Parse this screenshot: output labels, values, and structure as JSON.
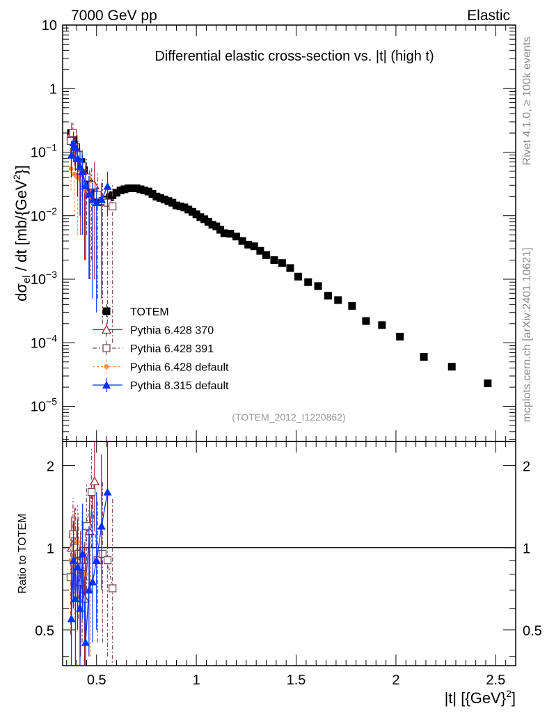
{
  "header": {
    "left": "7000 GeV pp",
    "right": "Elastic"
  },
  "side_labels": {
    "rivet": "Rivet 4.1.0, ≥ 100k events",
    "mcplots": "mcplots.cern.ch [arXiv:2401.10621]"
  },
  "colors": {
    "totem": "#000000",
    "py6_370": "#a02030",
    "py6_391": "#7a4a5a",
    "py6_default": "#ff8c40",
    "py8_default": "#0030ff",
    "ref_line": "#000000",
    "side_text": "#888888"
  },
  "chart_data": [
    {
      "id": "main",
      "type": "scatter",
      "title": "Differential elastic cross-section vs. |t| (high t)",
      "ylabel_main": "dσ",
      "ylabel_sub": "el",
      "ylabel_rest": " / dt [mb/{GeV",
      "ylabel_sup": "2",
      "ylabel_end": "}]",
      "yscale": "log",
      "xlim": [
        0.33,
        2.6
      ],
      "ylim": [
        2.8e-06,
        10
      ],
      "y_ticks": [
        {
          "value": 10,
          "base": "10",
          "sup": ""
        },
        {
          "value": 1,
          "base": "1",
          "sup": ""
        },
        {
          "value": 0.1,
          "base": "10",
          "sup": "−1"
        },
        {
          "value": 0.01,
          "base": "10",
          "sup": "−2"
        },
        {
          "value": 0.001,
          "base": "10",
          "sup": "−3"
        },
        {
          "value": 0.0001,
          "base": "10",
          "sup": "−4"
        },
        {
          "value": 1e-05,
          "base": "10",
          "sup": "−5"
        }
      ],
      "watermark": "(TOTEM_2012_I1220862)",
      "legend": [
        {
          "key": "totem",
          "label": "TOTEM"
        },
        {
          "key": "py6_370",
          "label": "Pythia 6.428 370"
        },
        {
          "key": "py6_391",
          "label": "Pythia 6.428 391"
        },
        {
          "key": "py6_default",
          "label": "Pythia 6.428 default"
        },
        {
          "key": "py8_default",
          "label": "Pythia 8.315 default"
        }
      ],
      "series": [
        {
          "key": "totem",
          "name": "TOTEM",
          "marker": "square",
          "x": [
            0.372,
            0.385,
            0.398,
            0.411,
            0.424,
            0.437,
            0.45,
            0.463,
            0.476,
            0.489,
            0.502,
            0.515,
            0.528,
            0.541,
            0.554,
            0.567,
            0.58,
            0.6,
            0.62,
            0.64,
            0.66,
            0.68,
            0.7,
            0.72,
            0.74,
            0.76,
            0.78,
            0.8,
            0.82,
            0.84,
            0.86,
            0.88,
            0.9,
            0.92,
            0.94,
            0.96,
            0.98,
            1.0,
            1.02,
            1.04,
            1.06,
            1.08,
            1.1,
            1.12,
            1.14,
            1.17,
            1.2,
            1.23,
            1.26,
            1.29,
            1.32,
            1.35,
            1.39,
            1.43,
            1.47,
            1.51,
            1.56,
            1.61,
            1.66,
            1.71,
            1.78,
            1.85,
            1.93,
            2.02,
            2.14,
            2.28,
            2.46
          ],
          "y": [
            0.2,
            0.16,
            0.12,
            0.09,
            0.07,
            0.052,
            0.04,
            0.032,
            0.026,
            0.021,
            0.0185,
            0.017,
            0.0165,
            0.017,
            0.018,
            0.0195,
            0.021,
            0.023,
            0.025,
            0.026,
            0.027,
            0.027,
            0.027,
            0.026,
            0.025,
            0.024,
            0.022,
            0.02,
            0.019,
            0.018,
            0.017,
            0.016,
            0.0145,
            0.014,
            0.0135,
            0.0125,
            0.0115,
            0.0105,
            0.0095,
            0.0088,
            0.008,
            0.0072,
            0.0068,
            0.006,
            0.0053,
            0.0052,
            0.0047,
            0.004,
            0.0035,
            0.0033,
            0.0028,
            0.0024,
            0.002,
            0.0018,
            0.0015,
            0.0011,
            0.0009,
            0.00078,
            0.00055,
            0.00047,
            0.00038,
            0.00022,
            0.00019,
            0.000125,
            6e-05,
            4.2e-05,
            2.3e-05
          ]
        },
        {
          "key": "py6_370",
          "name": "Pythia 6.428 370",
          "marker": "triangle-open",
          "x": [
            0.375,
            0.39,
            0.405,
            0.42,
            0.44,
            0.465,
            0.49
          ],
          "y": [
            0.2,
            0.12,
            0.08,
            0.05,
            0.03,
            0.022,
            0.03
          ],
          "err_lo": [
            0.05,
            0.06,
            0.06,
            0.045,
            0.028,
            0.021,
            0.029
          ],
          "err_hi": [
            0.09,
            0.08,
            0.07,
            0.05,
            0.04,
            0.03,
            0.04
          ]
        },
        {
          "key": "py6_391",
          "name": "Pythia 6.428 391",
          "marker": "square-open",
          "x": [
            0.37,
            0.382,
            0.395,
            0.41,
            0.428,
            0.45,
            0.475,
            0.505,
            0.53,
            0.555,
            0.58
          ],
          "y": [
            0.15,
            0.2,
            0.12,
            0.09,
            0.06,
            0.04,
            0.03,
            0.021,
            0.017,
            0.016,
            0.014
          ],
          "err_lo": [
            0.05,
            0.07,
            0.06,
            0.05,
            0.04,
            0.035,
            0.028,
            0.0205,
            0.0168,
            0.0158,
            0.0139
          ],
          "err_hi": [
            0.08,
            0.09,
            0.07,
            0.06,
            0.05,
            0.04,
            0.03,
            0.025,
            0.02,
            0.018,
            0.016
          ]
        },
        {
          "key": "py6_default",
          "name": "Pythia 6.428 default",
          "marker": "circle",
          "x": [
            0.372,
            0.388,
            0.405,
            0.423,
            0.445,
            0.47
          ],
          "y": [
            0.055,
            0.045,
            0.04,
            0.035,
            0.025,
            0.02
          ],
          "err_lo": [
            0.03,
            0.035,
            0.035,
            0.03,
            0.023,
            0.019
          ],
          "err_hi": [
            0.04,
            0.04,
            0.04,
            0.035,
            0.03,
            0.025
          ]
        },
        {
          "key": "py8_default",
          "name": "Pythia 8.315 default",
          "marker": "triangle",
          "x": [
            0.374,
            0.384,
            0.394,
            0.405,
            0.417,
            0.43,
            0.445,
            0.462,
            0.48,
            0.5,
            0.525,
            0.555
          ],
          "y": [
            0.09,
            0.14,
            0.12,
            0.08,
            0.06,
            0.05,
            0.03,
            0.022,
            0.018,
            0.016,
            0.018,
            0.029
          ],
          "err_lo": [
            0.05,
            0.07,
            0.07,
            0.06,
            0.05,
            0.045,
            0.028,
            0.021,
            0.0175,
            0.0157,
            0.0175,
            0.019
          ],
          "err_hi": [
            0.06,
            0.07,
            0.06,
            0.06,
            0.05,
            0.04,
            0.03,
            0.02,
            0.015,
            0.012,
            0.015,
            0.02
          ]
        }
      ]
    },
    {
      "id": "ratio",
      "type": "scatter",
      "ylabel": "Ratio to TOTEM",
      "xlabel": "|t| [{GeV}",
      "xlabel_sup": "2",
      "xlabel_end": "]",
      "yscale": "log",
      "xlim": [
        0.33,
        2.6
      ],
      "ylim": [
        0.37,
        2.45
      ],
      "reference": 1.0,
      "x_ticks": [
        {
          "value": 0.5,
          "label": "0.5"
        },
        {
          "value": 1.0,
          "label": "1"
        },
        {
          "value": 1.5,
          "label": "1.5"
        },
        {
          "value": 2.0,
          "label": "2"
        },
        {
          "value": 2.5,
          "label": "2.5"
        }
      ],
      "y_ticks": [
        {
          "value": 0.5,
          "label": "0.5"
        },
        {
          "value": 1.0,
          "label": "1"
        },
        {
          "value": 2.0,
          "label": "2"
        }
      ],
      "series": [
        {
          "key": "py6_370",
          "x": [
            0.375,
            0.39,
            0.405,
            0.42,
            0.44,
            0.465,
            0.49
          ],
          "y": [
            1.0,
            1.05,
            0.9,
            0.75,
            0.65,
            1.15,
            1.75
          ],
          "err_lo": [
            0.3,
            0.35,
            0.4,
            0.35,
            0.3,
            0.45,
            0.6
          ],
          "err_hi": [
            0.3,
            0.35,
            0.4,
            0.4,
            0.4,
            0.5,
            0.7
          ]
        },
        {
          "key": "py6_391",
          "x": [
            0.37,
            0.382,
            0.395,
            0.41,
            0.428,
            0.45,
            0.475,
            0.505,
            0.53,
            0.555,
            0.58
          ],
          "y": [
            0.78,
            1.12,
            1.0,
            0.95,
            0.85,
            1.2,
            1.6,
            0.9,
            0.95,
            0.9,
            0.71
          ],
          "err_lo": [
            0.3,
            0.4,
            0.4,
            0.4,
            0.4,
            0.5,
            0.6,
            0.45,
            0.5,
            0.5,
            0.35
          ],
          "err_hi": [
            0.35,
            0.4,
            0.4,
            0.4,
            0.4,
            0.5,
            0.7,
            0.6,
            0.8,
            0.8,
            0.8
          ]
        },
        {
          "key": "py6_default",
          "x": [
            0.372,
            0.388,
            0.405,
            0.423,
            0.445,
            0.47
          ],
          "y": [
            0.9,
            0.85,
            1.05,
            0.95,
            0.8,
            0.7
          ],
          "err_lo": [
            0.35,
            0.3,
            0.4,
            0.4,
            0.3,
            0.3
          ],
          "err_hi": [
            0.35,
            0.35,
            0.4,
            0.4,
            0.4,
            0.4
          ]
        },
        {
          "key": "py8_default",
          "x": [
            0.374,
            0.384,
            0.394,
            0.405,
            0.417,
            0.43,
            0.445,
            0.462,
            0.48,
            0.5,
            0.525,
            0.555
          ],
          "y": [
            0.55,
            0.9,
            0.65,
            0.85,
            0.6,
            0.95,
            0.45,
            0.7,
            0.75,
            0.9,
            1.2,
            1.6
          ],
          "err_lo": [
            0.2,
            0.3,
            0.3,
            0.35,
            0.25,
            0.4,
            0.2,
            0.3,
            0.3,
            0.4,
            0.5,
            0.6
          ],
          "err_hi": [
            0.3,
            0.35,
            0.3,
            0.4,
            0.4,
            0.5,
            0.5,
            0.5,
            0.6,
            0.7,
            1.0,
            1.0
          ]
        }
      ]
    }
  ]
}
